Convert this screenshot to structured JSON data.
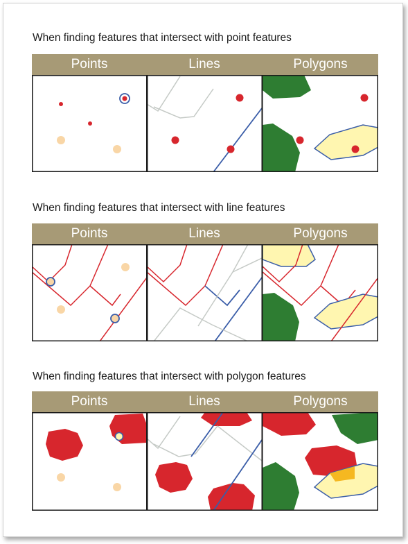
{
  "sections": [
    {
      "title": "When finding features that intersect with point features",
      "headers": [
        "Points",
        "Lines",
        "Polygons"
      ]
    },
    {
      "title": "When finding features that intersect with line features",
      "headers": [
        "Points",
        "Lines",
        "Polygons"
      ]
    },
    {
      "title": "When finding features that intersect with polygon features",
      "headers": [
        "Points",
        "Lines",
        "Polygons"
      ]
    }
  ],
  "colors": {
    "header_bg": "#a79a76",
    "selected_red": "#d7262d",
    "point_peach": "#f9d6a6",
    "polygon_yellow": "#fff6b0",
    "polygon_green": "#2e7d32",
    "line_blue": "#3a5da8",
    "line_gray": "#c5cac6"
  }
}
